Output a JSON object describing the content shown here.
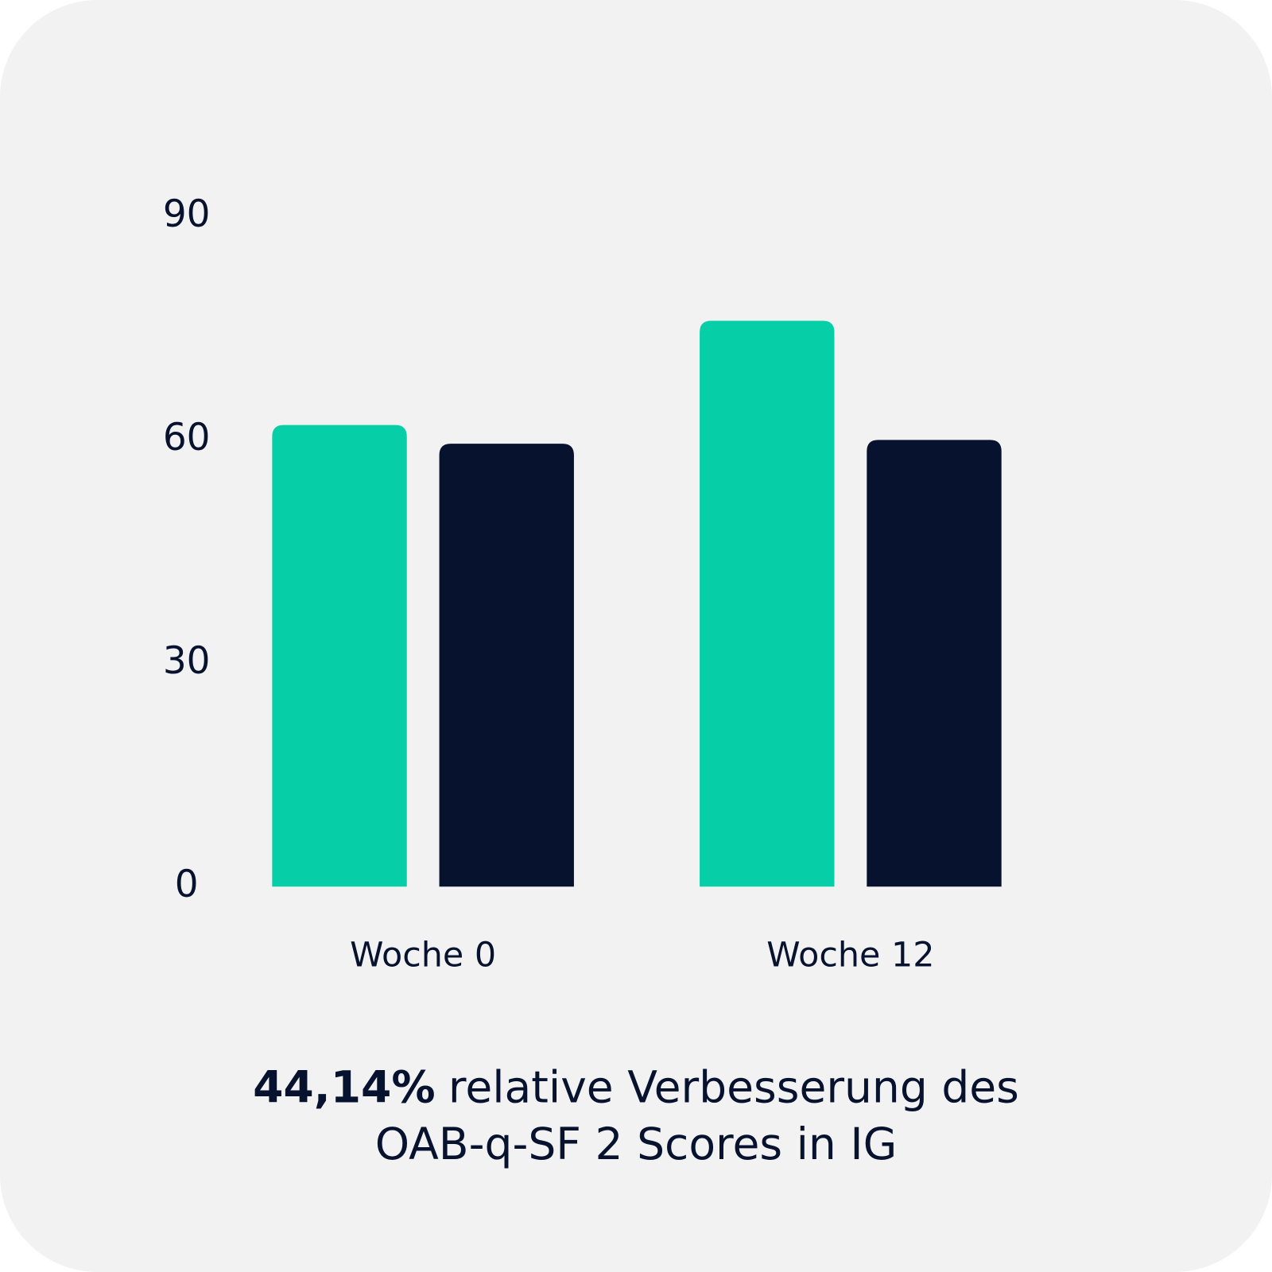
{
  "chart_data": {
    "type": "bar",
    "categories": [
      "Woche 0",
      "Woche 12"
    ],
    "series": [
      {
        "color": "#06cea6",
        "values": [
          62,
          76
        ]
      },
      {
        "color": "#07132e",
        "values": [
          59.5,
          60
        ]
      }
    ],
    "ylim": [
      0,
      90
    ],
    "yticks": [
      0,
      30,
      60,
      90
    ],
    "grid": false,
    "caption": [
      "44,14%",
      "relative Verbesserung des",
      "OAB-q-SF 2 Scores in IG"
    ]
  }
}
